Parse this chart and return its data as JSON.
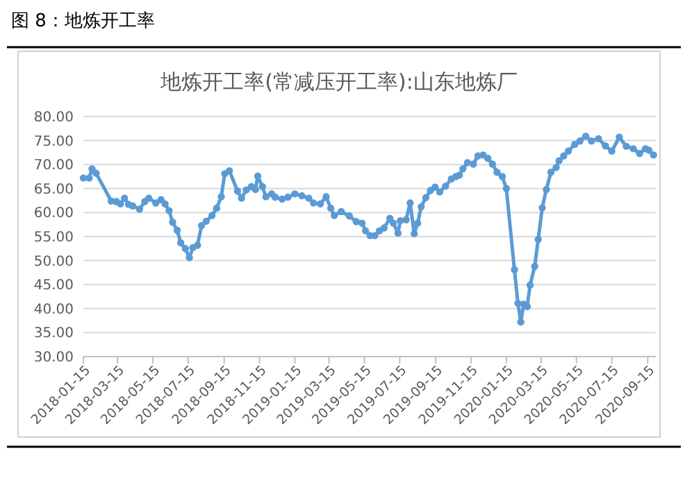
{
  "chart_data": {
    "type": "line",
    "title": "图 8：地炼开工率",
    "subtitle": "地炼开工率(常减压开工率):山东地炼厂",
    "x": [
      "2018-01-15",
      "2018-01-25",
      "2018-01-30",
      "2018-02-06",
      "2018-03-04",
      "2018-03-13",
      "2018-03-20",
      "2018-03-27",
      "2018-04-03",
      "2018-04-10",
      "2018-04-22",
      "2018-05-01",
      "2018-05-08",
      "2018-05-20",
      "2018-05-29",
      "2018-06-05",
      "2018-06-12",
      "2018-06-18",
      "2018-06-26",
      "2018-07-02",
      "2018-07-10",
      "2018-07-17",
      "2018-07-23",
      "2018-07-31",
      "2018-08-07",
      "2018-08-15",
      "2018-08-25",
      "2018-09-02",
      "2018-09-10",
      "2018-09-16",
      "2018-09-24",
      "2018-10-08",
      "2018-10-15",
      "2018-10-23",
      "2018-11-01",
      "2018-11-08",
      "2018-11-12",
      "2018-11-20",
      "2018-11-26",
      "2018-12-06",
      "2018-12-12",
      "2018-12-24",
      "2019-01-03",
      "2019-01-15",
      "2019-01-27",
      "2019-02-08",
      "2019-02-16",
      "2019-02-28",
      "2019-03-10",
      "2019-03-18",
      "2019-03-24",
      "2019-04-05",
      "2019-04-19",
      "2019-05-01",
      "2019-05-11",
      "2019-05-17",
      "2019-05-25",
      "2019-06-02",
      "2019-06-10",
      "2019-06-18",
      "2019-06-28",
      "2019-07-04",
      "2019-07-12",
      "2019-07-16",
      "2019-07-26",
      "2019-08-02",
      "2019-08-09",
      "2019-08-15",
      "2019-08-21",
      "2019-08-29",
      "2019-09-06",
      "2019-09-14",
      "2019-09-22",
      "2019-10-02",
      "2019-10-12",
      "2019-10-20",
      "2019-10-26",
      "2019-11-01",
      "2019-11-09",
      "2019-11-19",
      "2019-11-27",
      "2019-12-06",
      "2019-12-14",
      "2019-12-22",
      "2019-12-30",
      "2020-01-08",
      "2020-01-15",
      "2020-01-29",
      "2020-02-04",
      "2020-02-09",
      "2020-02-14",
      "2020-02-20",
      "2020-02-25",
      "2020-03-04",
      "2020-03-10",
      "2020-03-17",
      "2020-03-24",
      "2020-04-01",
      "2020-04-10",
      "2020-04-15",
      "2020-04-23",
      "2020-05-01",
      "2020-05-12",
      "2020-05-21",
      "2020-05-31",
      "2020-06-10",
      "2020-06-22",
      "2020-07-04",
      "2020-07-15",
      "2020-07-28",
      "2020-08-09",
      "2020-08-21",
      "2020-09-01",
      "2020-09-11",
      "2020-09-17",
      "2020-09-25"
    ],
    "series": [
      {
        "color": "#5b9bd5",
        "values": [
          67.2,
          67.2,
          69.1,
          68.2,
          62.4,
          62.3,
          61.8,
          63.0,
          61.7,
          61.4,
          60.7,
          62.3,
          63.0,
          62.0,
          62.7,
          61.8,
          60.4,
          58.0,
          56.3,
          53.7,
          52.5,
          50.6,
          52.7,
          53.2,
          57.3,
          58.2,
          59.4,
          60.9,
          63.3,
          68.1,
          68.7,
          64.5,
          63.0,
          64.7,
          65.4,
          64.8,
          67.6,
          65.4,
          63.3,
          63.9,
          63.2,
          62.8,
          63.2,
          63.9,
          63.5,
          63.0,
          62.0,
          61.8,
          63.3,
          60.9,
          59.4,
          60.2,
          59.3,
          58.1,
          57.8,
          56.2,
          55.2,
          55.2,
          56.2,
          56.8,
          58.8,
          57.8,
          55.7,
          58.3,
          58.5,
          62.0,
          55.6,
          57.8,
          61.2,
          63.1,
          64.6,
          65.3,
          64.3,
          65.5,
          67.0,
          67.5,
          67.8,
          69.1,
          70.4,
          70.1,
          71.8,
          72.0,
          71.3,
          70.1,
          68.4,
          67.5,
          65.0,
          48.1,
          41.1,
          37.2,
          40.9,
          40.4,
          44.9,
          48.8,
          54.4,
          61.0,
          64.8,
          68.4,
          69.4,
          70.8,
          71.8,
          72.8,
          74.2,
          74.9,
          75.9,
          74.9,
          75.4,
          73.9,
          72.8,
          75.7,
          73.8,
          73.3,
          72.3,
          73.3,
          73.0,
          72.0
        ]
      }
    ],
    "xlim": [
      "2018-01-15",
      "2020-09-29"
    ],
    "xticks": [
      "2018-01-15",
      "2018-03-15",
      "2018-05-15",
      "2018-07-15",
      "2018-09-15",
      "2018-11-15",
      "2019-01-15",
      "2019-03-15",
      "2019-05-15",
      "2019-07-15",
      "2019-09-15",
      "2019-11-15",
      "2020-01-15",
      "2020-03-15",
      "2020-05-15",
      "2020-07-15",
      "2020-09-15"
    ],
    "ylim": [
      30,
      80
    ],
    "yticks": [
      {
        "value": 30,
        "label": "30.00"
      },
      {
        "value": 35,
        "label": "35.00"
      },
      {
        "value": 40,
        "label": "40.00"
      },
      {
        "value": 45,
        "label": "45.00"
      },
      {
        "value": 50,
        "label": "50.00"
      },
      {
        "value": 55,
        "label": "55.00"
      },
      {
        "value": 60,
        "label": "60.00"
      },
      {
        "value": 65,
        "label": "65.00"
      },
      {
        "value": 70,
        "label": "70.00"
      },
      {
        "value": 75,
        "label": "75.00"
      },
      {
        "value": 80,
        "label": "80.00"
      }
    ],
    "grid": "y",
    "marker": "circle",
    "line_style": "solid"
  }
}
